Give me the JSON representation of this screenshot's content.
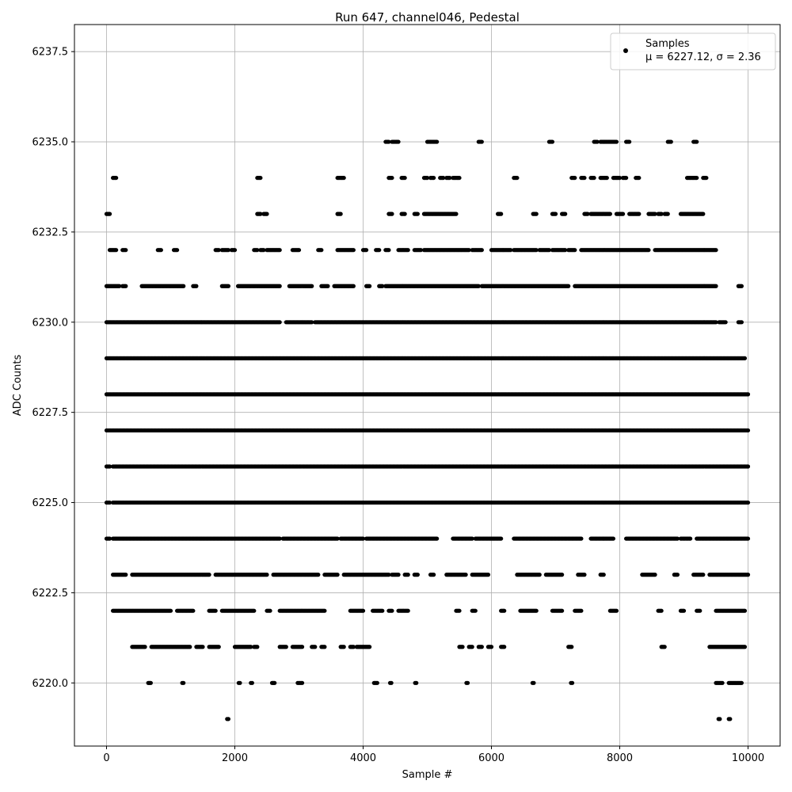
{
  "chart_data": {
    "type": "scatter",
    "title": "Run 647, channel046, Pedestal",
    "xlabel": "Sample #",
    "ylabel": "ADC Counts",
    "xlim": [
      -500,
      10500
    ],
    "ylim": [
      6218.25,
      6238.25
    ],
    "xticks": [
      0,
      2000,
      4000,
      6000,
      8000,
      10000
    ],
    "xtick_labels": [
      "0",
      "2000",
      "4000",
      "6000",
      "8000",
      "10000"
    ],
    "yticks": [
      6220.0,
      6222.5,
      6225.0,
      6227.5,
      6230.0,
      6232.5,
      6235.0,
      6237.5
    ],
    "ytick_labels": [
      "6220.0",
      "6222.5",
      "6225.0",
      "6227.5",
      "6230.0",
      "6232.5",
      "6235.0",
      "6237.5"
    ],
    "grid": true,
    "legend": {
      "position": "top-right",
      "entries": [
        {
          "label": "Samples",
          "stats": "μ = 6227.12, σ = 2.36"
        }
      ]
    },
    "series": [
      {
        "name": "Samples",
        "color": "#000000",
        "marker": "circle",
        "x_range": [
          0,
          10000
        ],
        "levels": [
          {
            "y": 6219,
            "segments": [
              [
                1880,
                1900
              ],
              [
                9540,
                9560
              ],
              [
                9700,
                9720
              ]
            ]
          },
          {
            "y": 6220,
            "segments": [
              [
                650,
                690
              ],
              [
                1180,
                1200
              ],
              [
                2060,
                2080
              ],
              [
                2250,
                2270
              ],
              [
                2580,
                2620
              ],
              [
                2980,
                3050
              ],
              [
                4170,
                4220
              ],
              [
                4420,
                4440
              ],
              [
                4810,
                4830
              ],
              [
                5610,
                5630
              ],
              [
                6640,
                6660
              ],
              [
                7240,
                7260
              ],
              [
                9500,
                9600
              ],
              [
                9700,
                9900
              ]
            ]
          },
          {
            "y": 6221,
            "segments": [
              [
                400,
                600
              ],
              [
                700,
                1300
              ],
              [
                1400,
                1500
              ],
              [
                1600,
                1750
              ],
              [
                2000,
                2250
              ],
              [
                2300,
                2350
              ],
              [
                2700,
                2800
              ],
              [
                2900,
                3050
              ],
              [
                3200,
                3250
              ],
              [
                3350,
                3400
              ],
              [
                3650,
                3700
              ],
              [
                3800,
                3850
              ],
              [
                3900,
                4100
              ],
              [
                5500,
                5550
              ],
              [
                5650,
                5700
              ],
              [
                5800,
                5850
              ],
              [
                5950,
                6000
              ],
              [
                6150,
                6200
              ],
              [
                7200,
                7250
              ],
              [
                8650,
                8700
              ],
              [
                9400,
                9950
              ]
            ]
          },
          {
            "y": 6222,
            "segments": [
              [
                100,
                1000
              ],
              [
                1100,
                1350
              ],
              [
                1600,
                1700
              ],
              [
                1800,
                2300
              ],
              [
                2500,
                2550
              ],
              [
                2700,
                3400
              ],
              [
                3800,
                4000
              ],
              [
                4150,
                4300
              ],
              [
                4400,
                4450
              ],
              [
                4550,
                4700
              ],
              [
                5450,
                5500
              ],
              [
                5700,
                5750
              ],
              [
                6150,
                6200
              ],
              [
                6450,
                6700
              ],
              [
                6950,
                7100
              ],
              [
                7300,
                7400
              ],
              [
                7850,
                7950
              ],
              [
                8600,
                8650
              ],
              [
                8950,
                9000
              ],
              [
                9200,
                9250
              ],
              [
                9500,
                9950
              ]
            ]
          },
          {
            "y": 6223,
            "segments": [
              [
                100,
                300
              ],
              [
                400,
                1600
              ],
              [
                1700,
                2500
              ],
              [
                2600,
                3300
              ],
              [
                3400,
                3600
              ],
              [
                3700,
                4400
              ],
              [
                4450,
                4550
              ],
              [
                4650,
                4700
              ],
              [
                4800,
                4850
              ],
              [
                5050,
                5100
              ],
              [
                5300,
                5600
              ],
              [
                5700,
                5950
              ],
              [
                6400,
                6750
              ],
              [
                6850,
                7100
              ],
              [
                7350,
                7450
              ],
              [
                7700,
                7750
              ],
              [
                8350,
                8550
              ],
              [
                8850,
                8900
              ],
              [
                9150,
                9300
              ],
              [
                9400,
                10000
              ]
            ]
          },
          {
            "y": 6224,
            "segments": [
              [
                0,
                50
              ],
              [
                100,
                2700
              ],
              [
                2750,
                3600
              ],
              [
                3650,
                4000
              ],
              [
                4050,
                5150
              ],
              [
                5400,
                5700
              ],
              [
                5750,
                6150
              ],
              [
                6350,
                7400
              ],
              [
                7550,
                7900
              ],
              [
                8100,
                8900
              ],
              [
                8950,
                9100
              ],
              [
                9200,
                10000
              ]
            ]
          },
          {
            "y": 6225,
            "segments": [
              [
                0,
                50
              ],
              [
                100,
                10000
              ]
            ]
          },
          {
            "y": 6226,
            "segments": [
              [
                0,
                50
              ],
              [
                100,
                10000
              ]
            ]
          },
          {
            "y": 6227,
            "segments": [
              [
                0,
                10000
              ]
            ]
          },
          {
            "y": 6228,
            "segments": [
              [
                0,
                10000
              ]
            ]
          },
          {
            "y": 6229,
            "segments": [
              [
                0,
                9950
              ]
            ]
          },
          {
            "y": 6230,
            "segments": [
              [
                0,
                2700
              ],
              [
                2800,
                3200
              ],
              [
                3250,
                9500
              ],
              [
                9550,
                9650
              ],
              [
                9850,
                9900
              ]
            ]
          },
          {
            "y": 6231,
            "segments": [
              [
                0,
                200
              ],
              [
                250,
                300
              ],
              [
                550,
                1200
              ],
              [
                1350,
                1400
              ],
              [
                1800,
                1900
              ],
              [
                2050,
                2700
              ],
              [
                2850,
                3200
              ],
              [
                3350,
                3450
              ],
              [
                3550,
                3850
              ],
              [
                4050,
                4100
              ],
              [
                4250,
                4300
              ],
              [
                4350,
                5800
              ],
              [
                5850,
                7200
              ],
              [
                7300,
                9500
              ],
              [
                9850,
                9900
              ]
            ]
          },
          {
            "y": 6232,
            "segments": [
              [
                50,
                150
              ],
              [
                250,
                300
              ],
              [
                800,
                850
              ],
              [
                1050,
                1100
              ],
              [
                1700,
                1750
              ],
              [
                1800,
                1900
              ],
              [
                1950,
                2000
              ],
              [
                2300,
                2350
              ],
              [
                2400,
                2450
              ],
              [
                2500,
                2700
              ],
              [
                2900,
                3000
              ],
              [
                3300,
                3350
              ],
              [
                3600,
                3850
              ],
              [
                4000,
                4050
              ],
              [
                4200,
                4250
              ],
              [
                4350,
                4400
              ],
              [
                4550,
                4700
              ],
              [
                4800,
                4900
              ],
              [
                4950,
                5650
              ],
              [
                5700,
                5850
              ],
              [
                6000,
                6300
              ],
              [
                6350,
                6700
              ],
              [
                6750,
                6900
              ],
              [
                6950,
                7150
              ],
              [
                7200,
                7300
              ],
              [
                7400,
                8450
              ],
              [
                8550,
                9500
              ]
            ]
          },
          {
            "y": 6233,
            "segments": [
              [
                0,
                50
              ],
              [
                2350,
                2400
              ],
              [
                2450,
                2500
              ],
              [
                3600,
                3650
              ],
              [
                4400,
                4450
              ],
              [
                4600,
                4650
              ],
              [
                4800,
                4850
              ],
              [
                4950,
                5450
              ],
              [
                6100,
                6150
              ],
              [
                6650,
                6700
              ],
              [
                6950,
                7000
              ],
              [
                7100,
                7150
              ],
              [
                7450,
                7500
              ],
              [
                7550,
                7850
              ],
              [
                7950,
                8050
              ],
              [
                8150,
                8300
              ],
              [
                8450,
                8550
              ],
              [
                8600,
                8650
              ],
              [
                8700,
                8750
              ],
              [
                8950,
                9300
              ]
            ]
          },
          {
            "y": 6234,
            "segments": [
              [
                100,
                150
              ],
              [
                2350,
                2400
              ],
              [
                3600,
                3700
              ],
              [
                4400,
                4450
              ],
              [
                4600,
                4650
              ],
              [
                4950,
                5000
              ],
              [
                5050,
                5100
              ],
              [
                5200,
                5250
              ],
              [
                5300,
                5350
              ],
              [
                5400,
                5500
              ],
              [
                6350,
                6400
              ],
              [
                7250,
                7300
              ],
              [
                7400,
                7450
              ],
              [
                7550,
                7600
              ],
              [
                7700,
                7800
              ],
              [
                7900,
                8000
              ],
              [
                8050,
                8100
              ],
              [
                8250,
                8300
              ],
              [
                9050,
                9200
              ],
              [
                9300,
                9350
              ]
            ]
          },
          {
            "y": 6235,
            "segments": [
              [
                4350,
                4400
              ],
              [
                4450,
                4550
              ],
              [
                5000,
                5150
              ],
              [
                5800,
                5850
              ],
              [
                6900,
                6950
              ],
              [
                7600,
                7650
              ],
              [
                7700,
                7950
              ],
              [
                8100,
                8150
              ],
              [
                8750,
                8800
              ],
              [
                9150,
                9200
              ]
            ]
          }
        ]
      }
    ]
  }
}
